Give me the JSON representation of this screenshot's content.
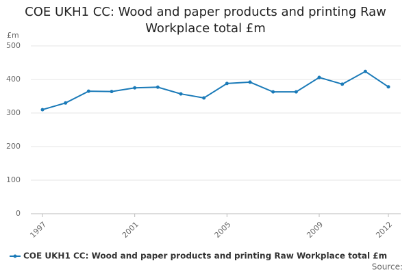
{
  "chart_data": {
    "type": "line",
    "title": "COE UKH1 CC: Wood and paper products and printing Raw Workplace total £m",
    "y_label": "£m",
    "source": "Source:",
    "x": [
      1997,
      1998,
      1999,
      2000,
      2001,
      2002,
      2003,
      2004,
      2005,
      2006,
      2007,
      2008,
      2009,
      2010,
      2011,
      2012
    ],
    "series": [
      {
        "name": "COE UKH1 CC: Wood and paper products and printing Raw Workplace total £m",
        "color": "#1a7ab8",
        "values": [
          310,
          330,
          365,
          364,
          375,
          377,
          357,
          345,
          388,
          392,
          363,
          363,
          406,
          386,
          424,
          378
        ]
      }
    ],
    "xlim": [
      1997,
      2012
    ],
    "xticks": [
      1997,
      2001,
      2005,
      2009,
      2012
    ],
    "ylim": [
      0,
      500
    ],
    "yticks": [
      0,
      100,
      200,
      300,
      400,
      500
    ],
    "grid": true
  }
}
